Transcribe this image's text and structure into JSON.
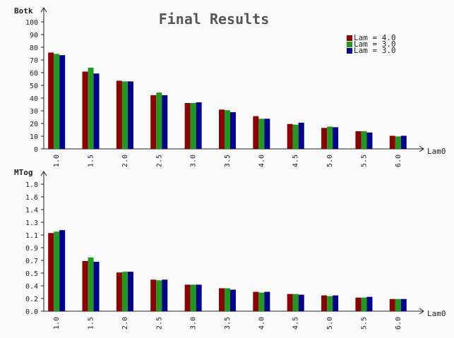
{
  "title": "Final Results",
  "colors": {
    "background": "#fbfbfb",
    "axis": "#222222",
    "grid": "#d8d8d8",
    "text": "#222222",
    "title": "#555555"
  },
  "legend": {
    "position": "top-right",
    "entries": [
      {
        "label": "Lam = 4.0",
        "color": "#8b0000"
      },
      {
        "label": "Lam = 3.0",
        "color": "#1f9a1f"
      },
      {
        "label": "Lam = 3.0",
        "color": "#00008b"
      }
    ]
  },
  "chart_data": [
    {
      "type": "bar",
      "name": "top-chart",
      "ylabel": "Botk",
      "xlabel": "Lam0",
      "categories": [
        "1.0",
        "1.5",
        "2.0",
        "2.5",
        "3.0",
        "3.5",
        "4.0",
        "4.5",
        "5.0",
        "5.5",
        "6.0"
      ],
      "ylim": [
        0,
        105
      ],
      "yticks": [
        "0",
        "10",
        "20",
        "30",
        "40",
        "50",
        "60",
        "70",
        "80",
        "90",
        "100"
      ],
      "series": [
        {
          "name": "Lam = 4.0",
          "color": "#8b0000",
          "values": [
            73.5,
            59,
            52,
            41,
            35,
            30,
            25,
            19,
            16,
            13.5,
            10
          ]
        },
        {
          "name": "Lam = 3.0",
          "color": "#1f9a1f",
          "values": [
            72.5,
            62,
            51.5,
            43,
            35,
            29.5,
            23,
            18.5,
            17,
            13.5,
            9.5
          ]
        },
        {
          "name": "Lam = 3.0",
          "color": "#00008b",
          "values": [
            71.5,
            57.5,
            51.5,
            41,
            35.5,
            28,
            23,
            20,
            16.5,
            12.5,
            10
          ]
        }
      ]
    },
    {
      "type": "bar",
      "name": "bottom-chart",
      "ylabel": "MTog",
      "xlabel": "Lam0",
      "categories": [
        "1.0",
        "1.5",
        "2.0",
        "2.5",
        "3.0",
        "3.5",
        "4.0",
        "4.5",
        "5.0",
        "5.5",
        "6.0"
      ],
      "ylim": [
        0,
        1.9
      ],
      "yticks": [
        "0.0",
        "0.2",
        "0.4",
        "0.5",
        "0.7",
        "0.9",
        "1.1",
        "1.3",
        "1.4",
        "1.6",
        "1.8"
      ],
      "series": [
        {
          "name": "Lam = 4.0",
          "color": "#8b0000",
          "values": [
            1.09,
            0.7,
            0.54,
            0.44,
            0.37,
            0.32,
            0.27,
            0.24,
            0.22,
            0.19,
            0.17
          ]
        },
        {
          "name": "Lam = 3.0",
          "color": "#1f9a1f",
          "values": [
            1.11,
            0.75,
            0.55,
            0.43,
            0.37,
            0.32,
            0.26,
            0.24,
            0.21,
            0.19,
            0.17
          ]
        },
        {
          "name": "Lam = 3.0",
          "color": "#00008b",
          "values": [
            1.13,
            0.69,
            0.55,
            0.44,
            0.37,
            0.3,
            0.27,
            0.23,
            0.22,
            0.2,
            0.17
          ]
        }
      ]
    }
  ]
}
